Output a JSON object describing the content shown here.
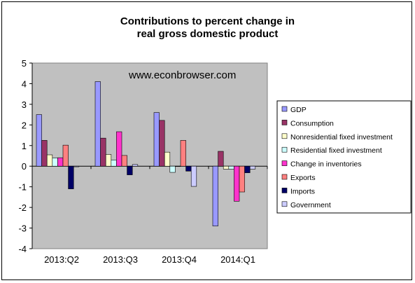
{
  "chart_data": {
    "type": "bar",
    "title_line1": "Contributions to percent change in",
    "title_line2": "real gross domestic product",
    "annotation": "www.econbrowser.com",
    "categories": [
      "2013:Q2",
      "2013:Q3",
      "2013:Q4",
      "2014:Q1"
    ],
    "ylim": [
      -4,
      5
    ],
    "yticks": [
      "5",
      "4",
      "3",
      "2",
      "1",
      "0",
      "-1",
      "-2",
      "-3",
      "-4"
    ],
    "grid": false,
    "legend_position": "right",
    "series": [
      {
        "name": "GDP",
        "color": "#9999ff",
        "values": [
          2.5,
          4.1,
          2.6,
          -2.9
        ]
      },
      {
        "name": "Consumption",
        "color": "#993366",
        "values": [
          1.25,
          1.36,
          2.22,
          0.72
        ]
      },
      {
        "name": "Nonresidential fixed investment",
        "color": "#ffffcc",
        "values": [
          0.55,
          0.57,
          0.68,
          -0.14
        ]
      },
      {
        "name": "Residential fixed investment",
        "color": "#ccffff",
        "values": [
          0.4,
          0.3,
          -0.3,
          -0.14
        ]
      },
      {
        "name": "Change in inventories",
        "color": "#ff33cc",
        "values": [
          0.41,
          1.67,
          0.0,
          -1.7
        ]
      },
      {
        "name": "Exports",
        "color": "#ff8080",
        "values": [
          1.02,
          0.52,
          1.25,
          -1.25
        ]
      },
      {
        "name": "Imports",
        "color": "#000066",
        "values": [
          -1.1,
          -0.42,
          -0.24,
          -0.32
        ]
      },
      {
        "name": "Government",
        "color": "#ccccff",
        "values": [
          -0.03,
          0.08,
          -0.98,
          -0.14
        ]
      }
    ]
  }
}
